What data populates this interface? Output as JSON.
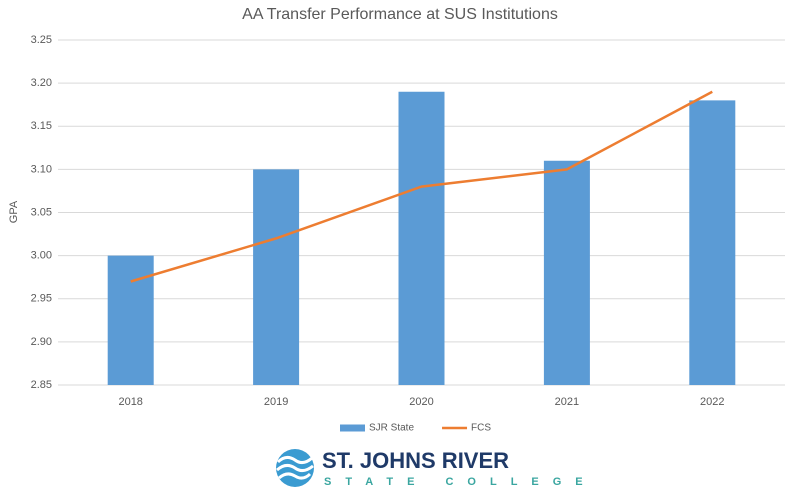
{
  "chart_data": {
    "type": "bar",
    "title": "AA Transfer Performance at SUS Institutions",
    "y_label": "GPA",
    "categories": [
      "2018",
      "2019",
      "2020",
      "2021",
      "2022"
    ],
    "series": [
      {
        "name": "SJR State",
        "type": "bar",
        "color": "#5b9bd5",
        "values": [
          3.0,
          3.1,
          3.19,
          3.11,
          3.18
        ]
      },
      {
        "name": "FCS",
        "type": "line",
        "color": "#ed7d31",
        "values": [
          2.97,
          3.02,
          3.08,
          3.1,
          3.19
        ]
      }
    ],
    "ylim": [
      2.85,
      3.25
    ],
    "yticks": [
      2.85,
      {
        "value": 2.9,
        "label": "2.90"
      },
      2.95,
      {
        "value": 3,
        "label": "3.00"
      },
      3.05,
      {
        "value": 3.1,
        "label": "3.10"
      },
      3.15,
      {
        "value": 3.2,
        "label": "3.20"
      },
      3.25
    ],
    "grid": true,
    "legend": "bottom"
  },
  "logo": {
    "line1": "ST. JOHNS RIVER",
    "line2": "STATE COLLEGE"
  }
}
